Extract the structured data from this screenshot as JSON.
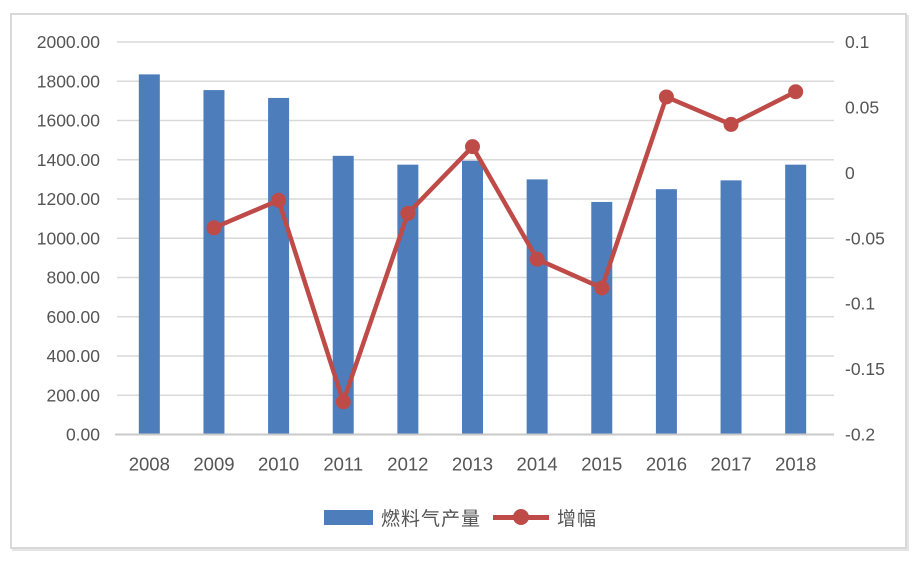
{
  "chart_data": {
    "type": "combo",
    "title": "",
    "categories": [
      "2008",
      "2009",
      "2010",
      "2011",
      "2012",
      "2013",
      "2014",
      "2015",
      "2016",
      "2017",
      "2018"
    ],
    "series": [
      {
        "name": "燃料气产量",
        "type": "bar",
        "axis": "left",
        "values": [
          1835,
          1755,
          1715,
          1420,
          1375,
          1395,
          1300,
          1185,
          1250,
          1295,
          1375
        ]
      },
      {
        "name": "增幅",
        "type": "line",
        "axis": "right",
        "values": [
          null,
          -0.042,
          -0.021,
          -0.175,
          -0.031,
          0.02,
          -0.066,
          -0.088,
          0.058,
          0.037,
          0.062
        ]
      }
    ],
    "left_axis": {
      "min": 0,
      "max": 2000,
      "step": 200,
      "tick_labels": [
        "2000.00",
        "1800.00",
        "1600.00",
        "1400.00",
        "1200.00",
        "1000.00",
        "800.00",
        "600.00",
        "400.00",
        "200.00",
        "0.00"
      ]
    },
    "right_axis": {
      "min": -0.2,
      "max": 0.1,
      "step": 0.05,
      "tick_labels": [
        "0.1",
        "0.05",
        "0",
        "-0.05",
        "-0.1",
        "-0.15",
        "-0.2"
      ]
    },
    "legend": {
      "position": "bottom",
      "items": [
        "燃料气产量",
        "增幅"
      ]
    },
    "grid": true,
    "xlabel": "",
    "ylabel": ""
  },
  "colors": {
    "bar": "#4d7dbb",
    "line": "#be4b48",
    "grid": "#d9d9d9",
    "axis_line": "#c9c9c9",
    "text": "#555555"
  }
}
